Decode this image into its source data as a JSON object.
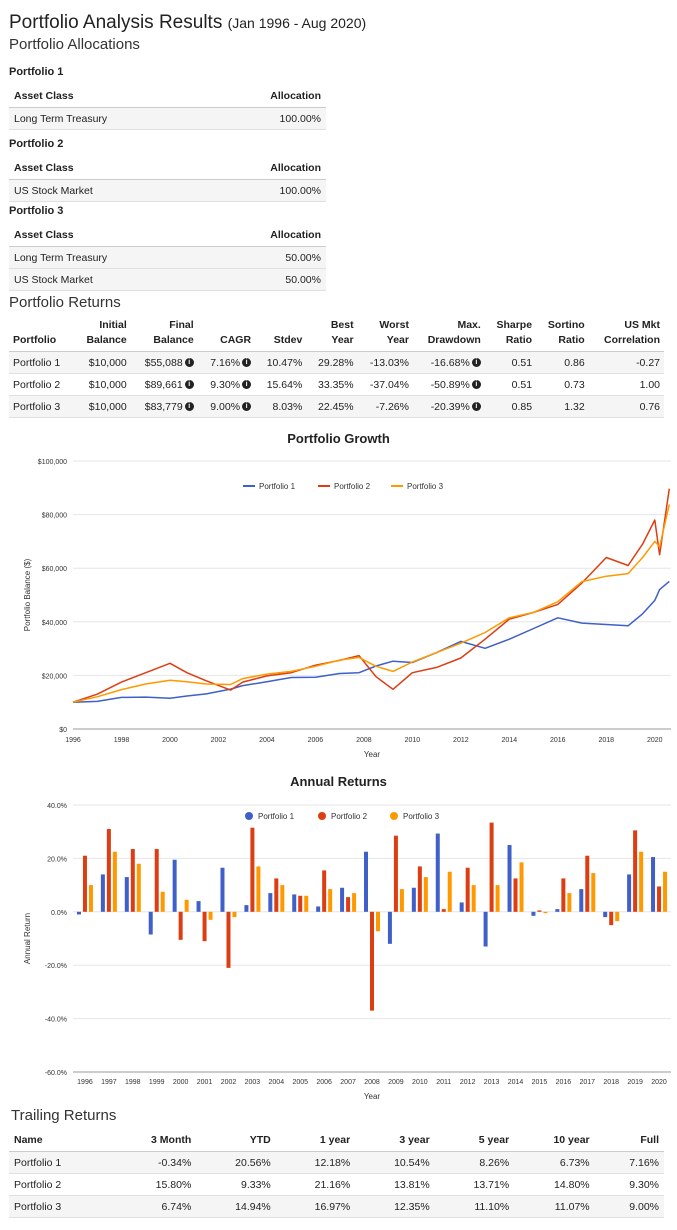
{
  "header": {
    "title": "Portfolio Analysis Results",
    "range": "(Jan 1996 - Aug 2020)",
    "allocations_heading": "Portfolio Allocations"
  },
  "allocations": [
    {
      "label": "Portfolio 1",
      "col_asset": "Asset Class",
      "col_alloc": "Allocation",
      "rows": [
        {
          "asset": "Long Term Treasury",
          "alloc": "100.00%"
        }
      ]
    },
    {
      "label": "Portfolio 2",
      "col_asset": "Asset Class",
      "col_alloc": "Allocation",
      "rows": [
        {
          "asset": "US Stock Market",
          "alloc": "100.00%"
        }
      ]
    },
    {
      "label": "Portfolio 3",
      "col_asset": "Asset Class",
      "col_alloc": "Allocation",
      "rows": [
        {
          "asset": "Long Term Treasury",
          "alloc": "50.00%"
        },
        {
          "asset": "US Stock Market",
          "alloc": "50.00%"
        }
      ]
    }
  ],
  "returns": {
    "heading": "Portfolio Returns",
    "columns": [
      [
        "Portfolio",
        ""
      ],
      [
        "Initial",
        "Balance"
      ],
      [
        "Final",
        "Balance"
      ],
      [
        "CAGR",
        ""
      ],
      [
        "Stdev",
        ""
      ],
      [
        "Best",
        "Year"
      ],
      [
        "Worst",
        "Year"
      ],
      [
        "Max.",
        "Drawdown"
      ],
      [
        "Sharpe",
        "Ratio"
      ],
      [
        "Sortino",
        "Ratio"
      ],
      [
        "US Mkt",
        "Correlation"
      ]
    ],
    "rows": [
      [
        "Portfolio 1",
        "$10,000",
        "$55,088",
        "7.16%",
        "10.47%",
        "29.28%",
        "-13.03%",
        "-16.68%",
        "0.51",
        "0.86",
        "-0.27"
      ],
      [
        "Portfolio 2",
        "$10,000",
        "$89,661",
        "9.30%",
        "15.64%",
        "33.35%",
        "-37.04%",
        "-50.89%",
        "0.51",
        "0.73",
        "1.00"
      ],
      [
        "Portfolio 3",
        "$10,000",
        "$83,779",
        "9.00%",
        "8.03%",
        "22.45%",
        "-7.26%",
        "-20.39%",
        "0.85",
        "1.32",
        "0.76"
      ]
    ]
  },
  "colors": {
    "p1": "#3f5fc9",
    "p2": "#dd3d12",
    "p3": "#ff9900"
  },
  "chart_data": [
    {
      "type": "line",
      "title": "Portfolio Growth",
      "xlabel": "Year",
      "ylabel": "Portfolio Balance ($)",
      "ylim": [
        0,
        100000
      ],
      "yticks": [
        "$0",
        "$20,000",
        "$40,000",
        "$60,000",
        "$80,000",
        "$100,000"
      ],
      "xticks": [
        "1996",
        "1998",
        "2000",
        "2002",
        "2004",
        "2006",
        "2008",
        "2010",
        "2012",
        "2014",
        "2016",
        "2018",
        "2020"
      ],
      "legend": "top-center",
      "x": [
        1996.0,
        1997.0,
        1998.0,
        1999.0,
        2000.0,
        2000.7,
        2001.5,
        2002.5,
        2003.0,
        2004.0,
        2005.0,
        2006.0,
        2007.0,
        2007.8,
        2008.5,
        2009.2,
        2010.0,
        2011.0,
        2012.0,
        2013.0,
        2014.0,
        2015.0,
        2016.0,
        2017.0,
        2018.0,
        2018.9,
        2019.5,
        2020.0,
        2020.2,
        2020.6
      ],
      "series": [
        {
          "name": "Portfolio 1",
          "values": [
            10000,
            10300,
            11800,
            11900,
            11500,
            12300,
            13100,
            14900,
            16200,
            17600,
            19200,
            19300,
            20700,
            21000,
            23500,
            25300,
            24800,
            28500,
            32700,
            30100,
            33500,
            37500,
            41500,
            39500,
            39000,
            38500,
            43000,
            48000,
            52000,
            55088
          ]
        },
        {
          "name": "Portfolio 2",
          "values": [
            10000,
            13000,
            17500,
            21000,
            24500,
            21000,
            18000,
            14500,
            17500,
            19800,
            21000,
            23800,
            25600,
            27400,
            19500,
            14800,
            21000,
            23000,
            26500,
            33500,
            41000,
            43500,
            46500,
            54500,
            64000,
            61000,
            69000,
            78000,
            65000,
            89661
          ]
        },
        {
          "name": "Portfolio 3",
          "values": [
            10000,
            12000,
            14700,
            16800,
            18200,
            17600,
            16800,
            16600,
            18800,
            20500,
            21500,
            23400,
            25700,
            26700,
            23400,
            21500,
            25000,
            28500,
            32000,
            36000,
            41500,
            43500,
            47500,
            55000,
            57000,
            58000,
            64000,
            70000,
            68000,
            83779
          ]
        }
      ]
    },
    {
      "type": "bar",
      "title": "Annual Returns",
      "xlabel": "Year",
      "ylabel": "Annual Return",
      "ylim": [
        -60,
        40
      ],
      "yticks": [
        "-60.0%",
        "-40.0%",
        "-20.0%",
        "0.0%",
        "20.0%",
        "40.0%"
      ],
      "legend": "top-center",
      "categories": [
        "1996",
        "1997",
        "1998",
        "1999",
        "2000",
        "2001",
        "2002",
        "2003",
        "2004",
        "2005",
        "2006",
        "2007",
        "2008",
        "2009",
        "2010",
        "2011",
        "2012",
        "2013",
        "2014",
        "2015",
        "2016",
        "2017",
        "2018",
        "2019",
        "2020"
      ],
      "series": [
        {
          "name": "Portfolio 1",
          "values": [
            -1.0,
            14.0,
            13.0,
            -8.5,
            19.5,
            4.0,
            16.5,
            2.5,
            7.0,
            6.5,
            2.0,
            9.0,
            22.5,
            -12.0,
            9.0,
            29.3,
            3.5,
            -13.0,
            25.0,
            -1.5,
            1.0,
            8.5,
            -2.0,
            14.0,
            20.5
          ]
        },
        {
          "name": "Portfolio 2",
          "values": [
            21.0,
            31.0,
            23.5,
            23.5,
            -10.5,
            -11.0,
            -21.0,
            31.5,
            12.5,
            6.0,
            15.5,
            5.5,
            -37.0,
            28.5,
            17.0,
            1.0,
            16.5,
            33.4,
            12.5,
            0.5,
            12.5,
            21.0,
            -5.0,
            30.5,
            9.5
          ]
        },
        {
          "name": "Portfolio 3",
          "values": [
            10.0,
            22.5,
            18.0,
            7.5,
            4.5,
            -3.0,
            -2.0,
            17.0,
            10.0,
            6.0,
            8.5,
            7.0,
            -7.3,
            8.5,
            13.0,
            15.0,
            10.0,
            10.0,
            18.5,
            -0.5,
            7.0,
            14.5,
            -3.5,
            22.5,
            15.0
          ]
        }
      ]
    }
  ],
  "trailing": {
    "heading": "Trailing Returns",
    "columns": [
      "Name",
      "3 Month",
      "YTD",
      "1 year",
      "3 year",
      "5 year",
      "10 year",
      "Full"
    ],
    "rows": [
      [
        "Portfolio 1",
        "-0.34%",
        "20.56%",
        "12.18%",
        "10.54%",
        "8.26%",
        "6.73%",
        "7.16%"
      ],
      [
        "Portfolio 2",
        "15.80%",
        "9.33%",
        "21.16%",
        "13.81%",
        "13.71%",
        "14.80%",
        "9.30%"
      ],
      [
        "Portfolio 3",
        "6.74%",
        "14.94%",
        "16.97%",
        "12.35%",
        "11.10%",
        "11.07%",
        "9.00%"
      ]
    ]
  }
}
